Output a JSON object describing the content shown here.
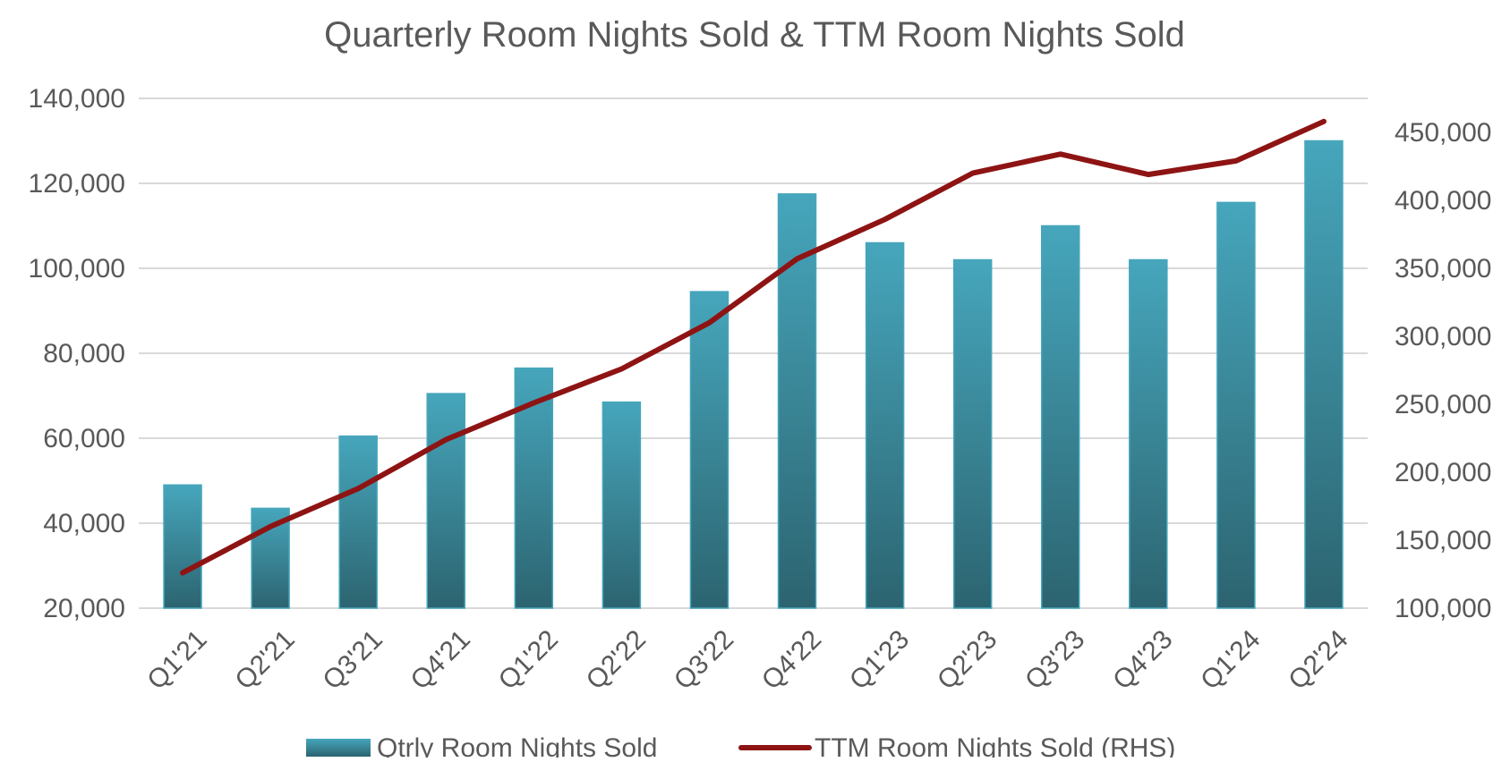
{
  "chart_data": {
    "type": "bar",
    "title": "Quarterly Room Nights Sold & TTM  Room Nights Sold",
    "categories": [
      "Q1'21",
      "Q2'21",
      "Q3'21",
      "Q4'21",
      "Q1'22",
      "Q2'22",
      "Q3'22",
      "Q4'22",
      "Q1'23",
      "Q2'23",
      "Q3'23",
      "Q4'23",
      "Q1'24",
      "Q2'24"
    ],
    "series": [
      {
        "name": "Qtrly Room Nights Sold",
        "type": "bar",
        "axis": "left",
        "color": "#46A6BC",
        "color_dark": "#2C6470",
        "values": [
          49000,
          43500,
          60500,
          70500,
          76500,
          68500,
          94500,
          117500,
          106000,
          102000,
          110000,
          102000,
          115500,
          130000
        ]
      },
      {
        "name": "TTM Room Nights Sold (RHS)",
        "type": "line",
        "axis": "right",
        "color": "#8E1414",
        "values": [
          126000,
          160000,
          188000,
          224000,
          251000,
          276000,
          310000,
          357000,
          386000,
          420000,
          434000,
          419000,
          429000,
          458000
        ]
      }
    ],
    "y_left": {
      "min": 20000,
      "max": 140000,
      "ticks": [
        "20,000",
        "40,000",
        "60,000",
        "80,000",
        "100,000",
        "120,000",
        "140,000"
      ]
    },
    "y_right": {
      "min": 100000,
      "max": 475000,
      "ticks": [
        "100,000",
        "150,000",
        "200,000",
        "250,000",
        "300,000",
        "350,000",
        "400,000",
        "450,000"
      ]
    },
    "xlabel": "",
    "ylabel": "",
    "grid": true,
    "gridline_color": "#D9D9D9",
    "legend_position": "bottom"
  }
}
